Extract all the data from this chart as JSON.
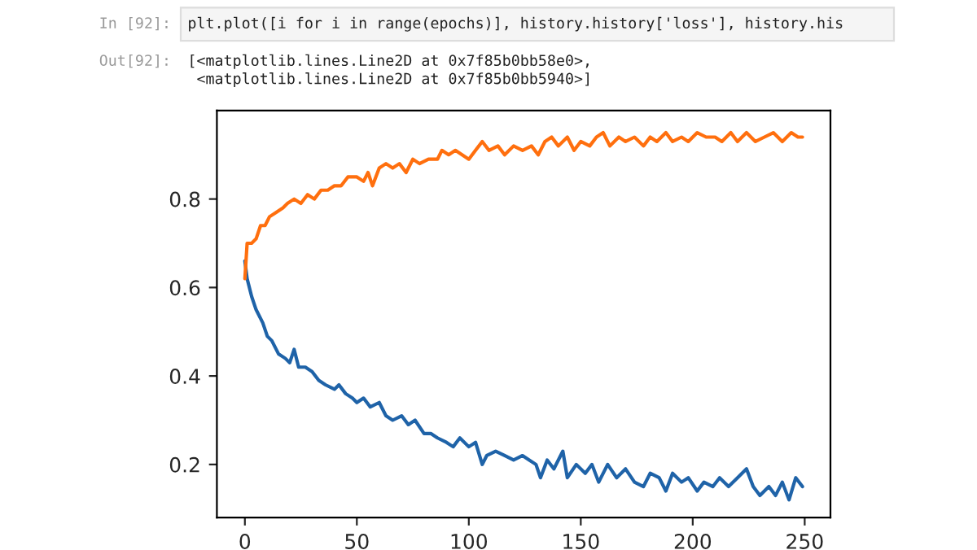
{
  "chart_data": {
    "type": "line",
    "annotations": [
      "In [92]:",
      "plt.plot([i for i in range(epochs)], history.history['loss'], history.his",
      "Out[92]:",
      "[<matplotlib.lines.Line2D at 0x7f85b0bb58e0>,",
      " <matplotlib.lines.Line2D at 0x7f85b0bb5940>]"
    ],
    "series": [
      {
        "color": "#1f63a8",
        "x": [
          0,
          1,
          3,
          5,
          8,
          10,
          12,
          15,
          18,
          20,
          22,
          24,
          27,
          30,
          33,
          36,
          40,
          42,
          45,
          48,
          50,
          53,
          56,
          60,
          63,
          66,
          70,
          73,
          76,
          80,
          83,
          86,
          90,
          93,
          96,
          100,
          103,
          106,
          108,
          112,
          116,
          120,
          124,
          127,
          130,
          132,
          135,
          138,
          142,
          144,
          148,
          152,
          155,
          158,
          162,
          166,
          170,
          174,
          178,
          181,
          185,
          188,
          191,
          195,
          198,
          202,
          205,
          209,
          212,
          216,
          220,
          224,
          227,
          230,
          234,
          237,
          240,
          243,
          246,
          249
        ],
        "values": [
          0.66,
          0.62,
          0.58,
          0.55,
          0.52,
          0.49,
          0.48,
          0.45,
          0.44,
          0.43,
          0.46,
          0.42,
          0.42,
          0.41,
          0.39,
          0.38,
          0.37,
          0.38,
          0.36,
          0.35,
          0.34,
          0.35,
          0.33,
          0.34,
          0.31,
          0.3,
          0.31,
          0.29,
          0.3,
          0.27,
          0.27,
          0.26,
          0.25,
          0.24,
          0.26,
          0.24,
          0.25,
          0.2,
          0.22,
          0.23,
          0.22,
          0.21,
          0.22,
          0.21,
          0.2,
          0.17,
          0.21,
          0.19,
          0.23,
          0.17,
          0.2,
          0.18,
          0.2,
          0.16,
          0.2,
          0.17,
          0.19,
          0.16,
          0.15,
          0.18,
          0.17,
          0.14,
          0.18,
          0.16,
          0.17,
          0.14,
          0.16,
          0.15,
          0.17,
          0.15,
          0.17,
          0.19,
          0.15,
          0.13,
          0.15,
          0.13,
          0.16,
          0.12,
          0.17,
          0.15
        ]
      },
      {
        "color": "#ff6f0e",
        "x": [
          0,
          1,
          3,
          5,
          7,
          9,
          11,
          14,
          17,
          19,
          22,
          25,
          28,
          31,
          34,
          37,
          40,
          43,
          46,
          50,
          53,
          55,
          57,
          60,
          63,
          66,
          69,
          72,
          75,
          78,
          82,
          86,
          88,
          91,
          94,
          97,
          100,
          103,
          106,
          109,
          113,
          116,
          120,
          124,
          128,
          131,
          134,
          137,
          140,
          144,
          147,
          150,
          154,
          157,
          160,
          163,
          167,
          170,
          174,
          178,
          181,
          184,
          188,
          191,
          195,
          198,
          202,
          206,
          210,
          213,
          217,
          220,
          224,
          228,
          232,
          236,
          240,
          244,
          247,
          249
        ],
        "values": [
          0.62,
          0.7,
          0.7,
          0.71,
          0.74,
          0.74,
          0.76,
          0.77,
          0.78,
          0.79,
          0.8,
          0.79,
          0.81,
          0.8,
          0.82,
          0.82,
          0.83,
          0.83,
          0.85,
          0.85,
          0.84,
          0.86,
          0.83,
          0.87,
          0.88,
          0.87,
          0.88,
          0.86,
          0.89,
          0.88,
          0.89,
          0.89,
          0.91,
          0.9,
          0.91,
          0.9,
          0.89,
          0.91,
          0.93,
          0.91,
          0.92,
          0.9,
          0.92,
          0.91,
          0.92,
          0.9,
          0.93,
          0.94,
          0.92,
          0.94,
          0.91,
          0.93,
          0.92,
          0.94,
          0.95,
          0.92,
          0.94,
          0.93,
          0.94,
          0.92,
          0.94,
          0.93,
          0.95,
          0.93,
          0.94,
          0.93,
          0.95,
          0.94,
          0.94,
          0.93,
          0.95,
          0.93,
          0.95,
          0.93,
          0.94,
          0.95,
          0.93,
          0.95,
          0.94,
          0.94
        ]
      }
    ],
    "xlim": [
      -12.5,
      261.5
    ],
    "ylim": [
      0.08,
      1.0
    ],
    "xticks": [
      0,
      50,
      100,
      150,
      200,
      250
    ],
    "yticks": [
      0.2,
      0.4,
      0.6,
      0.8
    ],
    "grid": false,
    "line_style": "solid",
    "marker": "none"
  }
}
